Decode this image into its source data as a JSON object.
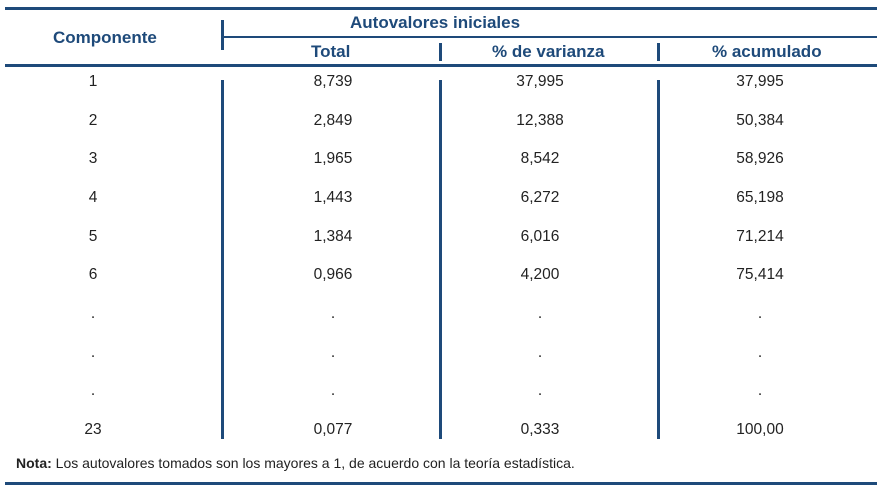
{
  "table": {
    "header": {
      "component": "Componente",
      "group": "Autovalores iniciales",
      "columns": [
        "Total",
        "% de varianza",
        "% acumulado"
      ]
    },
    "rows": [
      [
        "1",
        "8,739",
        "37,995",
        "37,995"
      ],
      [
        "2",
        "2,849",
        "12,388",
        "50,384"
      ],
      [
        "3",
        "1,965",
        "8,542",
        "58,926"
      ],
      [
        "4",
        "1,443",
        "6,272",
        "65,198"
      ],
      [
        "5",
        "1,384",
        "6,016",
        "71,214"
      ],
      [
        "6",
        "0,966",
        "4,200",
        "75,414"
      ],
      [
        ".",
        ".",
        ".",
        "."
      ],
      [
        ".",
        ".",
        ".",
        "."
      ],
      [
        ".",
        ".",
        ".",
        "."
      ],
      [
        "23",
        "0,077",
        "0,333",
        "100,00"
      ]
    ]
  },
  "note": {
    "label": "Nota:",
    "text": " Los autovalores tomados son los mayores a 1, de acuerdo con la teoría estadística."
  }
}
